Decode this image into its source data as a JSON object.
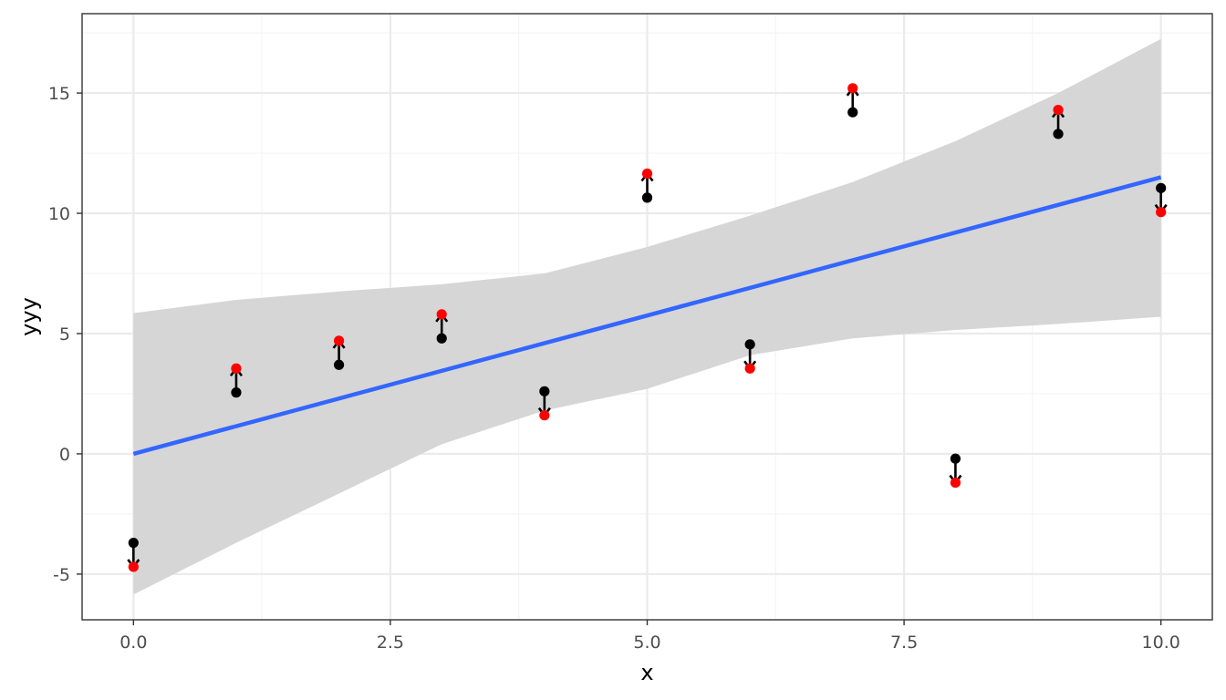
{
  "chart_data": {
    "type": "scatter",
    "title": "",
    "xlabel": "x",
    "ylabel": "yyy",
    "xlim": [
      -0.5,
      10.5
    ],
    "ylim": [
      -6.9,
      18.3
    ],
    "x_ticks": [
      0.0,
      2.5,
      5.0,
      7.5,
      10.0
    ],
    "x_tick_labels": [
      "0.0",
      "2.5",
      "5.0",
      "7.5",
      "10.0"
    ],
    "y_ticks": [
      -5,
      0,
      5,
      10,
      15
    ],
    "y_tick_labels": [
      "-5",
      "0",
      "5",
      "10",
      "15"
    ],
    "grid": true,
    "legend": "none",
    "series": [
      {
        "x": [
          0,
          1,
          2,
          3,
          4,
          5,
          6,
          7,
          8,
          9,
          10
        ],
        "values": [
          -3.7,
          2.55,
          3.7,
          4.8,
          2.6,
          10.65,
          4.55,
          14.2,
          -0.2,
          13.3,
          11.05
        ]
      },
      {
        "x": [
          0,
          1,
          2,
          3,
          4,
          5,
          6,
          7,
          8,
          9,
          10
        ],
        "values": [
          -4.7,
          3.55,
          4.7,
          5.8,
          1.6,
          11.65,
          3.55,
          15.2,
          -1.2,
          14.3,
          10.05
        ]
      }
    ],
    "fit_line": {
      "x": [
        0,
        10
      ],
      "values": [
        0.0,
        11.5
      ]
    },
    "confidence_band": {
      "x": [
        0,
        1,
        2,
        3,
        4,
        5,
        6,
        7,
        8,
        9,
        10
      ],
      "lower": [
        -5.85,
        -3.7,
        -1.65,
        0.4,
        1.8,
        2.7,
        4.1,
        4.8,
        5.15,
        5.4,
        5.7
      ],
      "upper": [
        5.85,
        6.4,
        6.75,
        7.05,
        7.5,
        8.6,
        9.9,
        11.3,
        13.0,
        15.0,
        17.25
      ]
    },
    "colors": {
      "original_points": "#000000",
      "shifted_points": "#ff0000",
      "fit_line": "#3366ff",
      "band": "#d6d6d6",
      "grid_major": "#ebebeb",
      "grid_minor": "#f4f4f4",
      "panel_border": "#333333"
    }
  }
}
